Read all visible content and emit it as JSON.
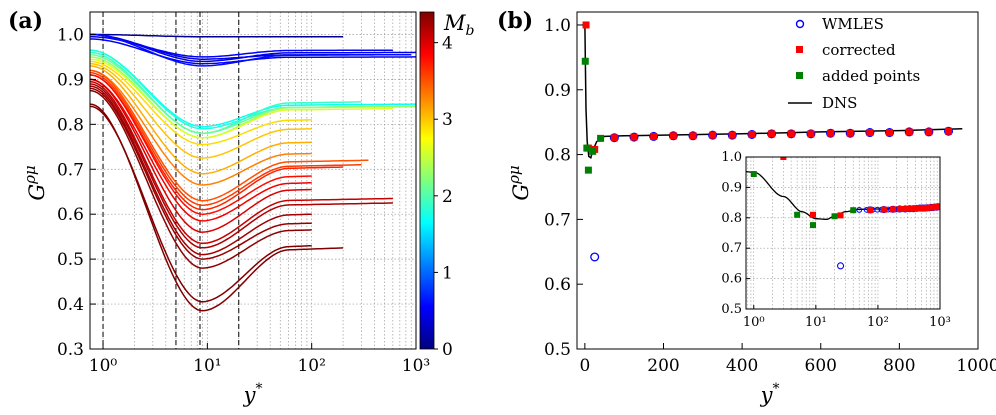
{
  "panels": {
    "a": {
      "label": "(a)",
      "xlabel": "y*",
      "ylabel": "Gρμ",
      "colorbar_label": "Mb",
      "colorbar_ticks": [
        "0",
        "1",
        "2",
        "3",
        "4"
      ]
    },
    "b": {
      "label": "(b)",
      "xlabel": "y*",
      "ylabel": "Gρμ",
      "legend": [
        "WMLES",
        "corrected",
        "added points",
        "DNS"
      ]
    }
  },
  "chart_data": [
    {
      "id": "panel-a",
      "type": "line",
      "x_scale": "log",
      "xlim": [
        0.75,
        1000
      ],
      "ylim": [
        0.3,
        1.05
      ],
      "x_ticks": [
        1,
        10,
        100,
        1000
      ],
      "x_tick_labels": [
        "10⁰",
        "10¹",
        "10²",
        "10³"
      ],
      "y_ticks": [
        0.3,
        0.4,
        0.5,
        0.6,
        0.7,
        0.8,
        0.9,
        1.0
      ],
      "y_tick_labels": [
        "0.3",
        "0.4",
        "0.5",
        "0.6",
        "0.7",
        "0.8",
        "0.9",
        "1.0"
      ],
      "vertical_lines": [
        1,
        5,
        8.5,
        20
      ],
      "grid": true,
      "colormap": "jet",
      "color_range": [
        0,
        4.4
      ],
      "series": [
        {
          "mach": 0.1,
          "y_wall": 1.0,
          "y_min": 0.995,
          "y_end": 0.995,
          "x_end": 200
        },
        {
          "mach": 0.4,
          "y_wall": 1.0,
          "y_min": 0.945,
          "y_end": 0.955,
          "x_end": 600
        },
        {
          "mach": 0.45,
          "y_wall": 1.0,
          "y_min": 0.94,
          "y_end": 0.96,
          "x_end": 1000
        },
        {
          "mach": 0.5,
          "y_wall": 0.99,
          "y_min": 0.935,
          "y_end": 0.95,
          "x_end": 1000
        },
        {
          "mach": 0.55,
          "y_wall": 0.995,
          "y_min": 0.95,
          "y_end": 0.965,
          "x_end": 600
        },
        {
          "mach": 0.6,
          "y_wall": 1.0,
          "y_min": 0.93,
          "y_end": 0.955,
          "x_end": 900
        },
        {
          "mach": 1.7,
          "y_wall": 0.965,
          "y_min": 0.795,
          "y_end": 0.845,
          "x_end": 1000
        },
        {
          "mach": 1.8,
          "y_wall": 0.965,
          "y_min": 0.79,
          "y_end": 0.84,
          "x_end": 1000
        },
        {
          "mach": 1.9,
          "y_wall": 0.96,
          "y_min": 0.78,
          "y_end": 0.85,
          "x_end": 300
        },
        {
          "mach": 2.1,
          "y_wall": 0.955,
          "y_min": 0.78,
          "y_end": 0.84,
          "x_end": 500
        },
        {
          "mach": 2.3,
          "y_wall": 0.95,
          "y_min": 0.77,
          "y_end": 0.84,
          "x_end": 1000
        },
        {
          "mach": 2.6,
          "y_wall": 0.945,
          "y_min": 0.77,
          "y_end": 0.835,
          "x_end": 600
        },
        {
          "mach": 2.9,
          "y_wall": 0.94,
          "y_min": 0.755,
          "y_end": 0.81,
          "x_end": 100
        },
        {
          "mach": 3.0,
          "y_wall": 0.935,
          "y_min": 0.725,
          "y_end": 0.79,
          "x_end": 100
        },
        {
          "mach": 3.1,
          "y_wall": 0.93,
          "y_min": 0.69,
          "y_end": 0.76,
          "x_end": 100
        },
        {
          "mach": 3.3,
          "y_wall": 0.92,
          "y_min": 0.665,
          "y_end": 0.735,
          "x_end": 100
        },
        {
          "mach": 3.5,
          "y_wall": 0.92,
          "y_min": 0.63,
          "y_end": 0.72,
          "x_end": 350
        },
        {
          "mach": 3.6,
          "y_wall": 0.915,
          "y_min": 0.62,
          "y_end": 0.71,
          "x_end": 300
        },
        {
          "mach": 3.7,
          "y_wall": 0.91,
          "y_min": 0.61,
          "y_end": 0.705,
          "x_end": 200
        },
        {
          "mach": 3.8,
          "y_wall": 0.91,
          "y_min": 0.6,
          "y_end": 0.685,
          "x_end": 100
        },
        {
          "mach": 3.9,
          "y_wall": 0.9,
          "y_min": 0.585,
          "y_end": 0.67,
          "x_end": 100
        },
        {
          "mach": 4.0,
          "y_wall": 0.9,
          "y_min": 0.56,
          "y_end": 0.655,
          "x_end": 100
        },
        {
          "mach": 4.1,
          "y_wall": 0.895,
          "y_min": 0.535,
          "y_end": 0.635,
          "x_end": 600
        },
        {
          "mach": 4.2,
          "y_wall": 0.89,
          "y_min": 0.525,
          "y_end": 0.625,
          "x_end": 600
        },
        {
          "mach": 4.25,
          "y_wall": 0.885,
          "y_min": 0.51,
          "y_end": 0.6,
          "x_end": 100
        },
        {
          "mach": 4.3,
          "y_wall": 0.88,
          "y_min": 0.5,
          "y_end": 0.58,
          "x_end": 100
        },
        {
          "mach": 4.35,
          "y_wall": 0.875,
          "y_min": 0.48,
          "y_end": 0.565,
          "x_end": 100
        },
        {
          "mach": 4.4,
          "y_wall": 0.845,
          "y_min": 0.385,
          "y_end": 0.525,
          "x_end": 200
        },
        {
          "mach": 4.4,
          "y_wall": 0.84,
          "y_min": 0.405,
          "y_end": 0.53,
          "x_end": 100
        }
      ]
    },
    {
      "id": "panel-b",
      "type": "scatter",
      "xlim": [
        -20,
        1000
      ],
      "ylim": [
        0.5,
        1.02
      ],
      "x_ticks": [
        0,
        200,
        400,
        600,
        800,
        1000
      ],
      "y_ticks": [
        0.5,
        0.6,
        0.7,
        0.8,
        0.9,
        1.0
      ],
      "y_tick_labels": [
        "0.5",
        "0.6",
        "0.7",
        "0.8",
        "0.9",
        "1.0"
      ],
      "series": [
        {
          "name": "WMLES",
          "marker": "open-circle",
          "color": "#0000ff",
          "x": [
            25,
            75,
            125,
            175,
            225,
            275,
            325,
            375,
            425,
            475,
            525,
            575,
            625,
            675,
            725,
            775,
            825,
            875,
            925
          ],
          "y": [
            0.642,
            0.826,
            0.827,
            0.828,
            0.829,
            0.829,
            0.83,
            0.83,
            0.831,
            0.832,
            0.832,
            0.832,
            0.833,
            0.833,
            0.834,
            0.834,
            0.835,
            0.835,
            0.836
          ]
        },
        {
          "name": "corrected",
          "marker": "square",
          "color": "#ff0000",
          "x": [
            3,
            9,
            25,
            75,
            125,
            175,
            225,
            275,
            325,
            375,
            425,
            475,
            525,
            575,
            625,
            675,
            725,
            775,
            825,
            875,
            925
          ],
          "y": [
            1.0,
            0.81,
            0.808,
            0.826,
            0.827,
            0.828,
            0.829,
            0.829,
            0.83,
            0.83,
            0.831,
            0.832,
            0.832,
            0.832,
            0.833,
            0.833,
            0.834,
            0.834,
            0.835,
            0.835,
            0.836
          ]
        },
        {
          "name": "added points",
          "marker": "square",
          "color": "#008000",
          "x": [
            1,
            5,
            9,
            20,
            40
          ],
          "y": [
            0.944,
            0.81,
            0.776,
            0.805,
            0.825
          ]
        },
        {
          "name": "DNS",
          "marker": "line",
          "color": "#000000",
          "x": [
            0.1,
            1,
            3,
            6,
            10,
            15,
            20,
            30,
            50,
            100,
            200,
            400,
            600,
            800,
            960
          ],
          "y": [
            1.0,
            0.95,
            0.87,
            0.82,
            0.797,
            0.795,
            0.806,
            0.82,
            0.828,
            0.829,
            0.83,
            0.832,
            0.835,
            0.837,
            0.84
          ]
        }
      ],
      "inset": {
        "x_scale": "log",
        "xlim": [
          0.75,
          1000
        ],
        "ylim": [
          0.5,
          1.0
        ],
        "x_ticks": [
          1,
          10,
          100,
          1000
        ],
        "x_tick_labels": [
          "10⁰",
          "10¹",
          "10²",
          "10³"
        ],
        "y_ticks": [
          0.5,
          0.6,
          0.7,
          0.8,
          0.9,
          1.0
        ],
        "y_tick_labels": [
          "0.5",
          "0.6",
          "0.7",
          "0.8",
          "0.9",
          "1.0"
        ],
        "grid": true
      }
    }
  ]
}
